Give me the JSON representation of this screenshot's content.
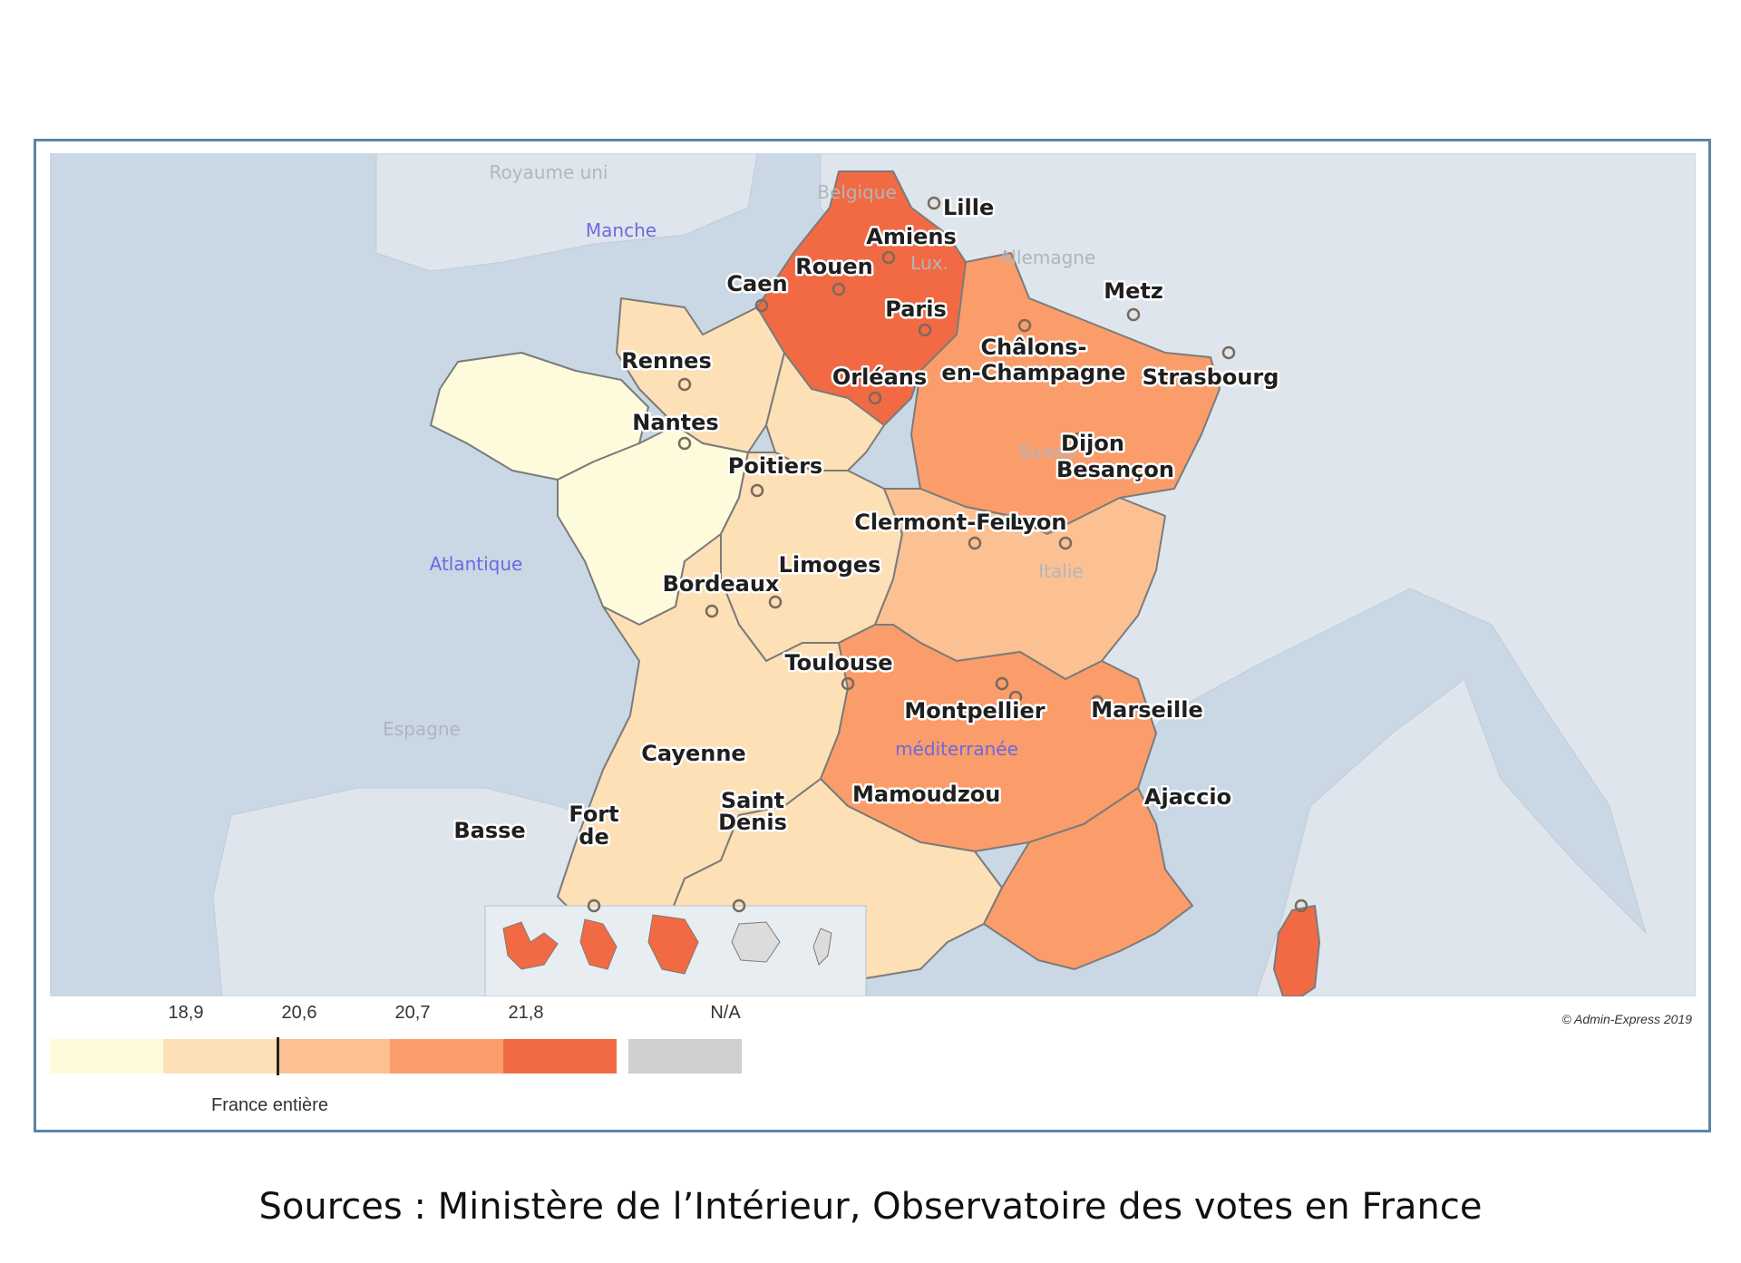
{
  "map": {
    "countries": [
      "Royaume uni",
      "Belgique",
      "Lux.",
      "Allemagne",
      "Suisse",
      "Italie",
      "Espagne"
    ],
    "seas": [
      "Manche",
      "Atlantique",
      "méditerranée"
    ],
    "cities": [
      "Lille",
      "Amiens",
      "Rouen",
      "Caen",
      "Paris",
      "Metz",
      "Châlons-",
      "en-Champagne",
      "Strasbourg",
      "Rennes",
      "Orléans",
      "Nantes",
      "Dijon",
      "Besançon",
      "Poitiers",
      "Clermont-Ferra",
      "Lyon",
      "Limoges",
      "Bordeaux",
      "Toulouse",
      "Montpellier",
      "Marseille",
      "Ajaccio",
      "Cayenne",
      "Basse",
      "Fort",
      "de",
      "Saint",
      "Denis",
      "Mamoudzou"
    ],
    "credit": "© Admin-Express 2019"
  },
  "legend": {
    "ticks": [
      "18,9",
      "20,6",
      "20,7",
      "21,8"
    ],
    "na_label": "N/A",
    "france_label": "France entière",
    "colors": [
      "#fefbdc",
      "#fde0b6",
      "#fcc193",
      "#fb9d6a",
      "#f26a43"
    ],
    "na_color": "#cfcfcf"
  },
  "source": "Sources : Ministère de l’Intérieur, Observatoire des votes en France"
}
